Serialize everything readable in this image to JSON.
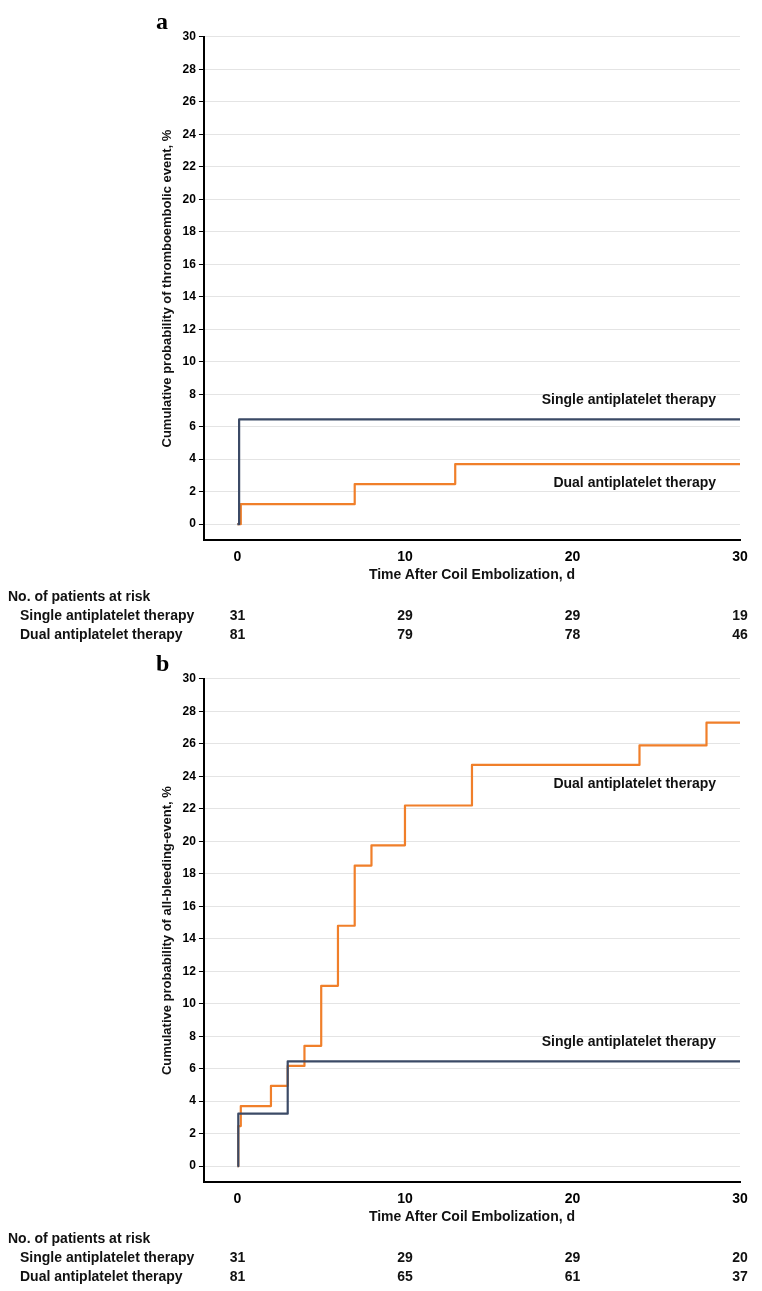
{
  "chart_data": [
    {
      "type": "step",
      "title": "a",
      "xlabel": "Time After Coil Embolization, d",
      "ylabel": "Cumulative probability of thromboembolic event, %",
      "xlim": [
        -2,
        30
      ],
      "xticks": [
        0,
        10,
        20,
        30
      ],
      "ylim": [
        -1,
        30
      ],
      "yticks": [
        0,
        2,
        4,
        6,
        8,
        10,
        12,
        14,
        16,
        18,
        20,
        22,
        24,
        26,
        28,
        30
      ],
      "grid": "y",
      "marker": "none",
      "line_style": "solid",
      "series": [
        {
          "name": "Single antiplatelet therapy",
          "color": "#3b4a66",
          "x": [
            0,
            0.1,
            30
          ],
          "values": [
            0,
            6.45,
            6.45
          ]
        },
        {
          "name": "Dual antiplatelet therapy",
          "color": "#f07f2a",
          "x": [
            0,
            0.2,
            7,
            13,
            30
          ],
          "values": [
            0,
            1.23,
            2.47,
            3.7,
            3.7
          ]
        }
      ],
      "annotations": [
        "No. of patients at risk",
        "Single antiplatelet therapy",
        "31",
        "29",
        "29",
        "19",
        "Dual antiplatelet therapy",
        "81",
        "79",
        "78",
        "46"
      ]
    },
    {
      "type": "step",
      "title": "b",
      "xlabel": "Time After Coil Embolization, d",
      "ylabel": "Cumulative probability of all-bleeding-event, %",
      "xlim": [
        -2,
        30
      ],
      "xticks": [
        0,
        10,
        20,
        30
      ],
      "ylim": [
        -1,
        30
      ],
      "yticks": [
        0,
        2,
        4,
        6,
        8,
        10,
        12,
        14,
        16,
        18,
        20,
        22,
        24,
        26,
        28,
        30
      ],
      "grid": "y",
      "marker": "none",
      "line_style": "solid",
      "series": [
        {
          "name": "Single antiplatelet therapy",
          "color": "#3b4a66",
          "x": [
            0,
            0.05,
            3,
            30
          ],
          "values": [
            0,
            3.23,
            6.45,
            6.45
          ]
        },
        {
          "name": "Dual antiplatelet therapy",
          "color": "#f07f2a",
          "x": [
            0,
            0.05,
            0.2,
            2,
            3,
            4,
            5,
            6,
            7,
            8,
            10,
            14,
            24,
            28,
            30
          ],
          "values": [
            0,
            2.47,
            3.7,
            4.94,
            6.17,
            7.41,
            11.1,
            14.8,
            18.5,
            19.75,
            22.2,
            24.7,
            25.9,
            27.3,
            27.3
          ]
        }
      ],
      "annotations": [
        "No. of patients at risk",
        "Single antiplatelet therapy",
        "31",
        "29",
        "29",
        "20",
        "Dual antiplatelet therapy",
        "81",
        "65",
        "61",
        "37"
      ]
    }
  ]
}
